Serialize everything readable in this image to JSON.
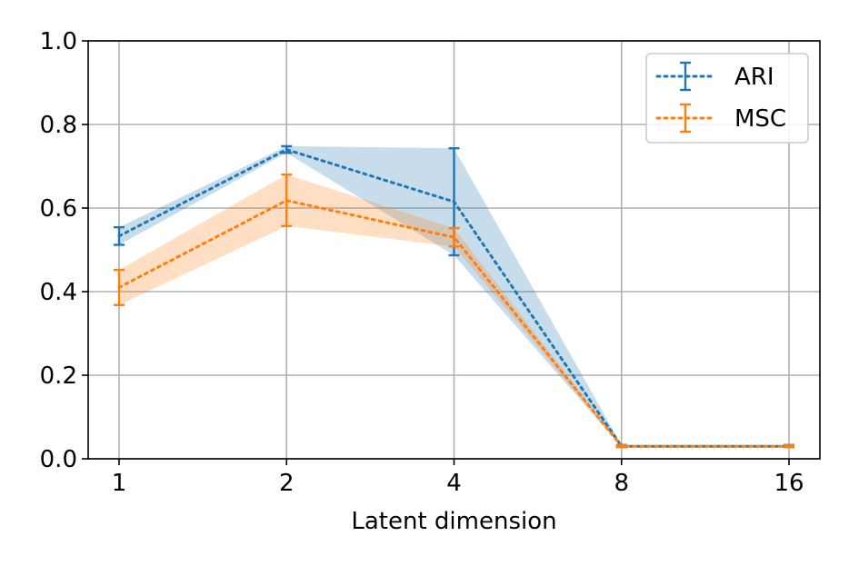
{
  "chart_data": {
    "type": "line",
    "title": "",
    "xlabel": "Latent dimension",
    "ylabel": "",
    "x_scale": "categorical",
    "categories": [
      "1",
      "2",
      "4",
      "8",
      "16"
    ],
    "ylim": [
      0.0,
      1.0
    ],
    "y_ticks": [
      "0.0",
      "0.2",
      "0.4",
      "0.6",
      "0.8",
      "1.0"
    ],
    "grid": true,
    "legend": {
      "position": "top-right"
    },
    "series": [
      {
        "name": "ARI",
        "color": "#1f77b4",
        "linestyle": "dotted",
        "values": [
          0.533,
          0.74,
          0.615,
          0.03,
          0.03
        ],
        "error_lower": [
          0.512,
          0.732,
          0.487,
          0.028,
          0.028
        ],
        "error_upper": [
          0.554,
          0.748,
          0.743,
          0.033,
          0.033
        ]
      },
      {
        "name": "MSC",
        "color": "#ff7f0e",
        "linestyle": "dotted",
        "values": [
          0.41,
          0.618,
          0.53,
          0.03,
          0.03
        ],
        "error_lower": [
          0.368,
          0.557,
          0.508,
          0.028,
          0.028
        ],
        "error_upper": [
          0.452,
          0.68,
          0.552,
          0.032,
          0.032
        ]
      }
    ]
  }
}
